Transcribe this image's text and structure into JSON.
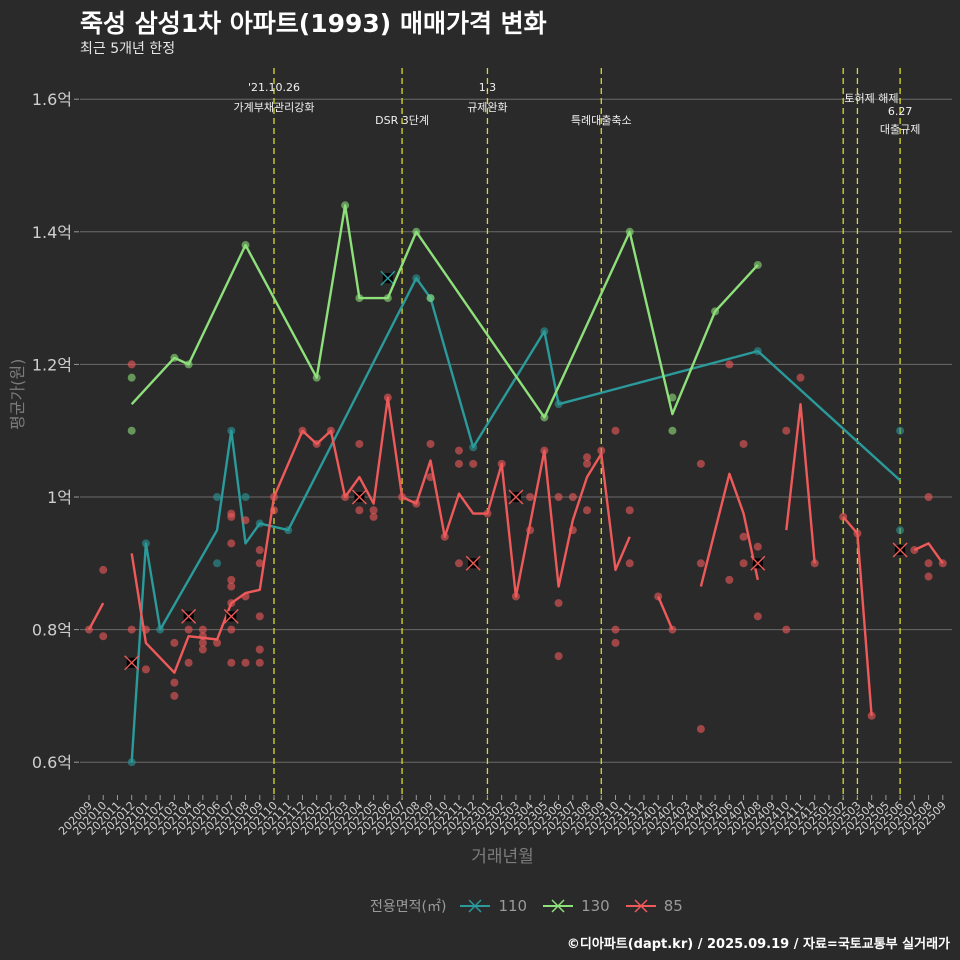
{
  "title": "죽성 삼성1차 아파트(1993) 매매가격 변화",
  "subtitle": "최근 5개년 한정",
  "footer": "©디아파트(dapt.kr) / 2025.09.19 / 자료=국토교통부 실거래가",
  "chart_data": {
    "type": "line",
    "title": "죽성 삼성1차 아파트(1993) 매매가격 변화",
    "subtitle": "최근 5개년 한정",
    "xlabel": "거래년월",
    "ylabel": "평균가(원)",
    "ylim": [
      0.55,
      1.65
    ],
    "yticks": [
      0.6,
      0.8,
      1.0,
      1.2,
      1.4,
      1.6
    ],
    "ytick_labels": [
      "0.6억",
      "0.8억",
      "1억",
      "1.2억",
      "1.4억",
      "1.6억"
    ],
    "x": [
      "202009",
      "202010",
      "202011",
      "202012",
      "202101",
      "202102",
      "202103",
      "202104",
      "202105",
      "202106",
      "202107",
      "202108",
      "202109",
      "202110",
      "202111",
      "202112",
      "202201",
      "202202",
      "202203",
      "202204",
      "202205",
      "202206",
      "202207",
      "202208",
      "202209",
      "202210",
      "202211",
      "202212",
      "202301",
      "202302",
      "202303",
      "202304",
      "202305",
      "202306",
      "202307",
      "202308",
      "202309",
      "202310",
      "202311",
      "202312",
      "202401",
      "202402",
      "202403",
      "202404",
      "202405",
      "202406",
      "202407",
      "202408",
      "202409",
      "202410",
      "202411",
      "202412",
      "202501",
      "202502",
      "202503",
      "202504",
      "202505",
      "202506",
      "202507",
      "202508",
      "202509"
    ],
    "grid": true,
    "legend_title": "전용면적(㎡)",
    "legend_position": "bottom",
    "colors": {
      "110": "#2a9a9a",
      "130": "#8ee07a",
      "85": "#ee5a5a",
      "vline": "#d9d92a",
      "grid": "#6a6a6a"
    },
    "events": [
      {
        "month": "202110",
        "label1": "'21.10.26",
        "label2": "가계부채관리강화",
        "row": 0
      },
      {
        "month": "202207",
        "label1": "",
        "label2": "DSR 3단계",
        "row": 1
      },
      {
        "month": "202301",
        "label1": "1.3",
        "label2": "규제완화",
        "row": 0
      },
      {
        "month": "202309",
        "label1": "",
        "label2": "특례대출축소",
        "row": 1
      },
      {
        "month": "202502",
        "label1": "",
        "label2": "",
        "row": 0
      },
      {
        "month": "202503",
        "label1": "토허제 해제",
        "label2": "",
        "row": 2
      },
      {
        "month": "202506",
        "label1": "6.27",
        "label2": "대출규제",
        "row": 3
      }
    ],
    "series": [
      {
        "name": "110",
        "line": [
          [
            "202012",
            0.6
          ],
          [
            "202101",
            0.93
          ],
          [
            "202102",
            0.8
          ],
          [
            "202106",
            0.95
          ],
          [
            "202107",
            1.1
          ],
          [
            "202108",
            0.93
          ],
          [
            "202109",
            0.96
          ],
          [
            "202111",
            0.95
          ],
          [
            "202208",
            1.33
          ],
          [
            "202209",
            1.3
          ],
          [
            "202212",
            1.075
          ],
          [
            "202305",
            1.25
          ],
          [
            "202306",
            1.14
          ],
          [
            "202408",
            1.22
          ],
          [
            "202506",
            1.025
          ]
        ],
        "points": [
          [
            "202012",
            0.6
          ],
          [
            "202101",
            0.93
          ],
          [
            "202102",
            0.8
          ],
          [
            "202106",
            1.0
          ],
          [
            "202106",
            0.9
          ],
          [
            "202107",
            1.1
          ],
          [
            "202108",
            1.0
          ],
          [
            "202109",
            0.96
          ],
          [
            "202111",
            0.95
          ],
          [
            "202208",
            1.33
          ],
          [
            "202209",
            1.3
          ],
          [
            "202212",
            1.075
          ],
          [
            "202305",
            1.25
          ],
          [
            "202306",
            1.14
          ],
          [
            "202408",
            1.22
          ],
          [
            "202506",
            1.1
          ],
          [
            "202506",
            0.95
          ]
        ],
        "marks": [
          [
            "202206",
            1.33
          ]
        ]
      },
      {
        "name": "130",
        "line": [
          [
            "202012",
            1.14
          ],
          [
            "202103",
            1.21
          ],
          [
            "202104",
            1.2
          ],
          [
            "202108",
            1.38
          ],
          [
            "202201",
            1.18
          ],
          [
            "202203",
            1.44
          ],
          [
            "202204",
            1.3
          ],
          [
            "202206",
            1.3
          ],
          [
            "202208",
            1.4
          ],
          [
            "202305",
            1.12
          ],
          [
            "202311",
            1.4
          ],
          [
            "202402",
            1.125
          ],
          [
            "202405",
            1.28
          ],
          [
            "202408",
            1.35
          ]
        ],
        "points": [
          [
            "202012",
            1.18
          ],
          [
            "202012",
            1.1
          ],
          [
            "202103",
            1.21
          ],
          [
            "202104",
            1.2
          ],
          [
            "202108",
            1.38
          ],
          [
            "202201",
            1.18
          ],
          [
            "202203",
            1.44
          ],
          [
            "202204",
            1.3
          ],
          [
            "202206",
            1.3
          ],
          [
            "202208",
            1.4
          ],
          [
            "202209",
            1.3
          ],
          [
            "202305",
            1.12
          ],
          [
            "202311",
            1.4
          ],
          [
            "202402",
            1.15
          ],
          [
            "202402",
            1.1
          ],
          [
            "202405",
            1.28
          ],
          [
            "202408",
            1.35
          ]
        ],
        "marks": []
      },
      {
        "name": "85",
        "segments": [
          [
            [
              "202009",
              0.8
            ],
            [
              "202010",
              0.84
            ]
          ],
          [
            [
              "202012",
              0.915
            ],
            [
              "202101",
              0.78
            ],
            [
              "202103",
              0.735
            ],
            [
              "202104",
              0.79
            ],
            [
              "202106",
              0.785
            ],
            [
              "202107",
              0.84
            ],
            [
              "202108",
              0.855
            ],
            [
              "202109",
              0.86
            ],
            [
              "202110",
              1.0
            ],
            [
              "202112",
              1.1
            ],
            [
              "202201",
              1.08
            ],
            [
              "202202",
              1.1
            ],
            [
              "202203",
              1.0
            ],
            [
              "202204",
              1.03
            ],
            [
              "202205",
              0.99
            ],
            [
              "202206",
              1.15
            ],
            [
              "202207",
              1.0
            ],
            [
              "202208",
              0.99
            ],
            [
              "202209",
              1.055
            ],
            [
              "202210",
              0.94
            ],
            [
              "202211",
              1.005
            ],
            [
              "202212",
              0.975
            ],
            [
              "202301",
              0.975
            ],
            [
              "202302",
              1.05
            ],
            [
              "202303",
              0.85
            ],
            [
              "202305",
              1.07
            ],
            [
              "202306",
              0.865
            ],
            [
              "202307",
              0.965
            ],
            [
              "202308",
              1.03
            ],
            [
              "202309",
              1.065
            ],
            [
              "202310",
              0.89
            ],
            [
              "202311",
              0.94
            ]
          ],
          [
            [
              "202401",
              0.85
            ],
            [
              "202402",
              0.8
            ]
          ],
          [
            [
              "202404",
              0.865
            ],
            [
              "202406",
              1.035
            ],
            [
              "202407",
              0.975
            ],
            [
              "202408",
              0.875
            ]
          ],
          [
            [
              "202410",
              0.95
            ],
            [
              "202411",
              1.14
            ],
            [
              "202412",
              0.9
            ]
          ],
          [
            [
              "202502",
              0.97
            ],
            [
              "202503",
              0.945
            ],
            [
              "202504",
              0.67
            ]
          ],
          [
            [
              "202507",
              0.92
            ],
            [
              "202508",
              0.93
            ],
            [
              "202509",
              0.9
            ]
          ]
        ],
        "points": [
          [
            "202009",
            0.8
          ],
          [
            "202010",
            0.89
          ],
          [
            "202010",
            0.79
          ],
          [
            "202012",
            1.2
          ],
          [
            "202012",
            0.8
          ],
          [
            "202101",
            0.8
          ],
          [
            "202101",
            0.74
          ],
          [
            "202103",
            0.78
          ],
          [
            "202103",
            0.72
          ],
          [
            "202103",
            0.7
          ],
          [
            "202104",
            0.8
          ],
          [
            "202104",
            0.75
          ],
          [
            "202105",
            0.8
          ],
          [
            "202105",
            0.79
          ],
          [
            "202105",
            0.78
          ],
          [
            "202105",
            0.77
          ],
          [
            "202106",
            0.78
          ],
          [
            "202107",
            0.975
          ],
          [
            "202107",
            0.97
          ],
          [
            "202107",
            0.93
          ],
          [
            "202107",
            0.875
          ],
          [
            "202107",
            0.865
          ],
          [
            "202107",
            0.84
          ],
          [
            "202107",
            0.8
          ],
          [
            "202107",
            0.75
          ],
          [
            "202108",
            0.965
          ],
          [
            "202108",
            0.85
          ],
          [
            "202108",
            0.75
          ],
          [
            "202109",
            0.92
          ],
          [
            "202109",
            0.9
          ],
          [
            "202109",
            0.82
          ],
          [
            "202109",
            0.77
          ],
          [
            "202109",
            0.75
          ],
          [
            "202110",
            1.0
          ],
          [
            "202110",
            0.98
          ],
          [
            "202112",
            1.1
          ],
          [
            "202201",
            1.08
          ],
          [
            "202202",
            1.1
          ],
          [
            "202203",
            1.0
          ],
          [
            "202204",
            1.08
          ],
          [
            "202204",
            0.98
          ],
          [
            "202205",
            0.98
          ],
          [
            "202205",
            0.97
          ],
          [
            "202206",
            1.15
          ],
          [
            "202207",
            1.0
          ],
          [
            "202208",
            0.99
          ],
          [
            "202209",
            1.08
          ],
          [
            "202209",
            1.03
          ],
          [
            "202210",
            0.94
          ],
          [
            "202211",
            1.07
          ],
          [
            "202211",
            1.05
          ],
          [
            "202211",
            0.9
          ],
          [
            "202212",
            1.05
          ],
          [
            "202301",
            0.975
          ],
          [
            "202302",
            1.05
          ],
          [
            "202303",
            0.85
          ],
          [
            "202304",
            1.0
          ],
          [
            "202304",
            0.95
          ],
          [
            "202305",
            1.07
          ],
          [
            "202306",
            1.0
          ],
          [
            "202306",
            0.84
          ],
          [
            "202306",
            0.76
          ],
          [
            "202307",
            1.0
          ],
          [
            "202307",
            0.95
          ],
          [
            "202308",
            1.06
          ],
          [
            "202308",
            1.05
          ],
          [
            "202308",
            0.98
          ],
          [
            "202309",
            1.07
          ],
          [
            "202310",
            1.1
          ],
          [
            "202310",
            0.8
          ],
          [
            "202310",
            0.78
          ],
          [
            "202311",
            0.98
          ],
          [
            "202311",
            0.9
          ],
          [
            "202401",
            0.85
          ],
          [
            "202402",
            0.8
          ],
          [
            "202404",
            1.05
          ],
          [
            "202404",
            0.9
          ],
          [
            "202404",
            0.65
          ],
          [
            "202406",
            1.2
          ],
          [
            "202406",
            0.875
          ],
          [
            "202407",
            1.08
          ],
          [
            "202407",
            0.94
          ],
          [
            "202407",
            0.9
          ],
          [
            "202408",
            0.925
          ],
          [
            "202408",
            0.82
          ],
          [
            "202410",
            1.1
          ],
          [
            "202410",
            0.8
          ],
          [
            "202411",
            1.18
          ],
          [
            "202412",
            0.9
          ],
          [
            "202502",
            0.97
          ],
          [
            "202503",
            0.945
          ],
          [
            "202504",
            0.67
          ],
          [
            "202507",
            0.92
          ],
          [
            "202508",
            1.0
          ],
          [
            "202508",
            0.9
          ],
          [
            "202508",
            0.88
          ],
          [
            "202509",
            0.9
          ]
        ],
        "marks": [
          [
            "202012",
            0.75
          ],
          [
            "202104",
            0.82
          ],
          [
            "202107",
            0.82
          ],
          [
            "202204",
            1.0
          ],
          [
            "202212",
            0.9
          ],
          [
            "202303",
            1.0
          ],
          [
            "202408",
            0.9
          ],
          [
            "202506",
            0.92
          ]
        ]
      }
    ]
  }
}
